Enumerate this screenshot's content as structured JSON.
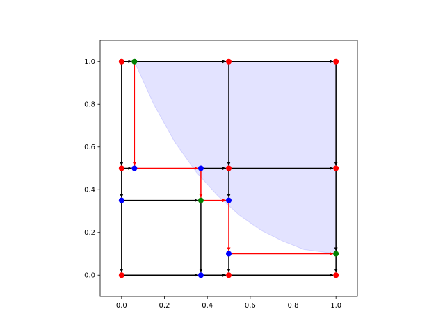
{
  "chart_data": {
    "type": "graph",
    "xlim": [
      -0.1,
      1.1
    ],
    "ylim": [
      -0.1,
      1.1
    ],
    "xticks": [
      {
        "value": 0,
        "label": "0.0"
      },
      0.2,
      0.4,
      0.6,
      0.8,
      {
        "value": 1,
        "label": "1.0"
      }
    ],
    "yticks": [
      {
        "value": 0,
        "label": "0.0"
      },
      0.2,
      0.4,
      0.6,
      0.8,
      {
        "value": 1,
        "label": "1.0"
      }
    ],
    "region": {
      "color": "#0000ff",
      "x": [
        0.06,
        0.15,
        0.25,
        0.35,
        0.45,
        0.55,
        0.65,
        0.75,
        0.85,
        1.0
      ],
      "y": [
        1.0,
        0.8,
        0.62,
        0.48,
        0.37,
        0.28,
        0.21,
        0.16,
        0.12,
        0.1
      ],
      "top": 1.0
    },
    "edge_groups": [
      {
        "color": "#000000",
        "x0": [
          0,
          0.06,
          0.5,
          0,
          0.5,
          1,
          0,
          0.37,
          0.5,
          0,
          0.5,
          1,
          0,
          0,
          0.37,
          0.5,
          1,
          0,
          0.37,
          0.5
        ],
        "y0": [
          1,
          1,
          1,
          1,
          1,
          1,
          0.5,
          0.5,
          0.5,
          0.5,
          0.5,
          0.5,
          0.35,
          0.35,
          0.35,
          0.1,
          0.1,
          0,
          0,
          0
        ],
        "x1": [
          0.06,
          0.5,
          1,
          0,
          0.5,
          1,
          0.06,
          0.5,
          1,
          0,
          0.5,
          1,
          0.37,
          0,
          0.37,
          0.5,
          1,
          0.37,
          0.5,
          1
        ],
        "y1": [
          1,
          1,
          1,
          0.5,
          0.5,
          0.5,
          0.5,
          0.5,
          0.5,
          0.35,
          0.35,
          0.1,
          0.35,
          0,
          0,
          0,
          0,
          0,
          0,
          0
        ]
      },
      {
        "color": "#ff0000",
        "x0": [
          0.06,
          0.06,
          0.37,
          0.37,
          0.5,
          0.5
        ],
        "y0": [
          1,
          0.5,
          0.5,
          0.35,
          0.35,
          0.1
        ],
        "x1": [
          0.06,
          0.37,
          0.37,
          0.5,
          0.5,
          1
        ],
        "y1": [
          0.5,
          0.5,
          0.35,
          0.35,
          0.1,
          0.1
        ]
      }
    ],
    "series": [
      {
        "color": "#ff0000",
        "x": [
          0,
          0.5,
          1,
          0,
          0.5,
          1,
          0,
          0.5,
          1
        ],
        "y": [
          1,
          1,
          1,
          0.5,
          0.5,
          0.5,
          0,
          0,
          0
        ]
      },
      {
        "color": "#008000",
        "x": [
          0.06,
          0.37,
          1
        ],
        "y": [
          1,
          0.35,
          0.1
        ]
      },
      {
        "color": "#0000ff",
        "x": [
          0.06,
          0.37,
          0,
          0.5,
          0.5,
          0.37
        ],
        "y": [
          0.5,
          0.5,
          0.35,
          0.35,
          0.1,
          0
        ]
      }
    ]
  }
}
